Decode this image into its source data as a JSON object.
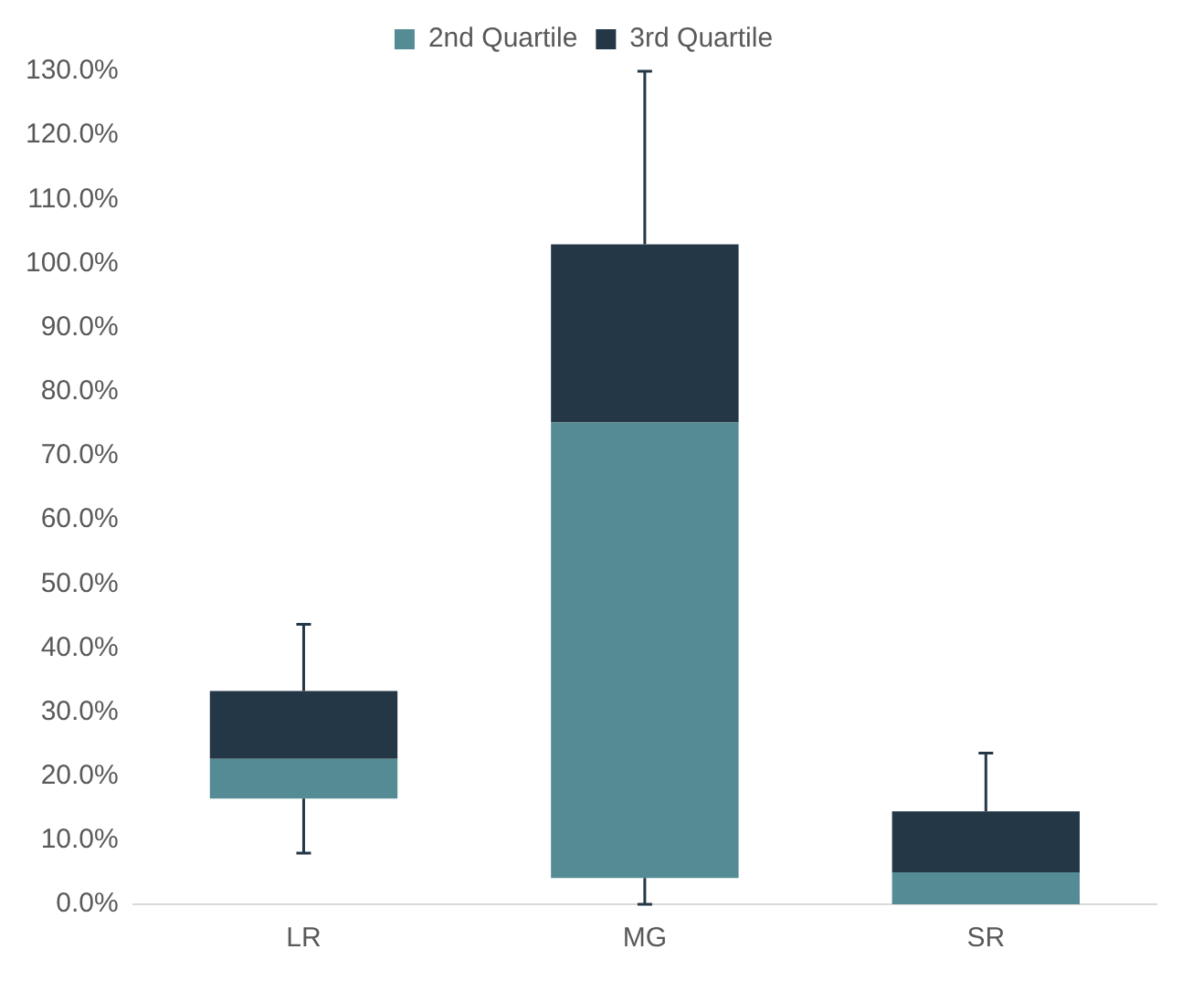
{
  "chart_data": {
    "type": "bar",
    "categories": [
      "LR",
      "MG",
      "SR"
    ],
    "series": [
      {
        "name": "2nd Quartile",
        "color": "#548b94",
        "base": [
          16.5,
          4.1,
          0
        ],
        "values": [
          6.2,
          71.1,
          5
        ],
        "errors": [
          [
            8,
            16.5
          ],
          [
            0,
            4.1
          ],
          null
        ]
      },
      {
        "name": "3rd Quartile",
        "color": "#243746",
        "base": [
          22.7,
          75.2,
          5
        ],
        "values": [
          10.6,
          27.8,
          9.5
        ],
        "errors": [
          [
            33.3,
            43.7
          ],
          [
            103,
            130
          ],
          [
            14.5,
            23.6
          ]
        ]
      }
    ],
    "ylim": [
      0,
      130
    ],
    "yticks": [
      {
        "value": 0,
        "label": "0.0%"
      },
      {
        "value": 10,
        "label": "10.0%"
      },
      {
        "value": 20,
        "label": "20.0%"
      },
      {
        "value": 30,
        "label": "30.0%"
      },
      {
        "value": 40,
        "label": "40.0%"
      },
      {
        "value": 50,
        "label": "50.0%"
      },
      {
        "value": 60,
        "label": "60.0%"
      },
      {
        "value": 70,
        "label": "70.0%"
      },
      {
        "value": 80,
        "label": "80.0%"
      },
      {
        "value": 90,
        "label": "90.0%"
      },
      {
        "value": 100,
        "label": "100.0%"
      },
      {
        "value": 110,
        "label": "110.0%"
      },
      {
        "value": 120,
        "label": "120.0%"
      },
      {
        "value": 130,
        "label": "130.0%"
      }
    ],
    "grid": false,
    "legend": "top"
  }
}
